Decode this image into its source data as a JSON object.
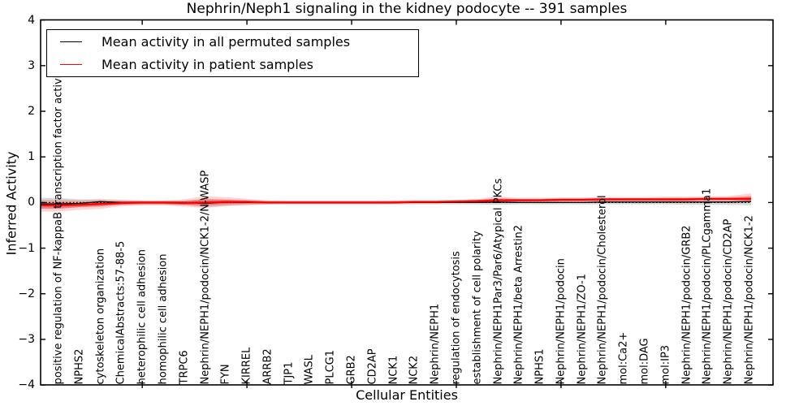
{
  "figure": {
    "title": "Nephrin/Neph1 signaling in the kidney podocyte -- 391 samples",
    "xlabel": "Cellular Entities",
    "ylabel": "Inferred Activity"
  },
  "legend": {
    "items": [
      {
        "label": "Mean activity in all permuted samples",
        "color": "#000000"
      },
      {
        "label": "Mean activity in patient samples",
        "color": "#ff0000"
      }
    ]
  },
  "chart_data": {
    "type": "line",
    "title": "Nephrin/Neph1 signaling in the kidney podocyte -- 391 samples",
    "xlabel": "Cellular Entities",
    "ylabel": "Inferred Activity",
    "ylim": [
      -4,
      4
    ],
    "yticks": [
      -4,
      -3,
      -2,
      -1,
      0,
      1,
      2,
      3,
      4
    ],
    "frame_xticks": [
      5,
      10,
      15,
      20,
      25,
      30
    ],
    "grid": false,
    "legend_position": "upper left",
    "zero_reference_line": {
      "y": 0,
      "style": "dotted",
      "color": "#000000"
    },
    "categories": [
      "positive regulation of NF-kappaB transcription factor activity",
      "NPHS2",
      "cytoskeleton organization",
      "ChemicalAbstracts:57-88-5",
      "heterophilic cell adhesion",
      "homophilic cell adhesion",
      "TRPC6",
      "Nephrin/NEPH1/podocin/NCK1-2/N-WASP",
      "FYN",
      "KIRREL",
      "ARRB2",
      "TJP1",
      "WASL",
      "PLCG1",
      "GRB2",
      "CD2AP",
      "NCK1",
      "NCK2",
      "Nephrin/NEPH1",
      "regulation of endocytosis",
      "establishment of cell polarity",
      "Nephrin/NEPH1Par3/Par6/Atypical PKCs",
      "Nephrin/NEPH1/beta Arrestin2",
      "NPHS1",
      "Nephrin/NEPH1/podocin",
      "Nephrin/NEPH1/ZO-1",
      "Nephrin/NEPH1/podocin/Cholesterol",
      "mol:Ca2+",
      "mol:DAG",
      "mol:IP3",
      "Nephrin/NEPH1/podocin/GRB2",
      "Nephrin/NEPH1/podocin/PLCgamma1",
      "Nephrin/NEPH1/podocin/CD2AP",
      "Nephrin/NEPH1/podocin/NCK1-2"
    ],
    "series": [
      {
        "name": "Mean activity in all permuted samples",
        "color": "#000000",
        "band_color": "#8a8a8a",
        "values": [
          -0.03,
          -0.02,
          0.02,
          0.0,
          0.0,
          0.0,
          0.0,
          -0.02,
          0.01,
          0.0,
          0.0,
          0.0,
          0.0,
          0.0,
          0.0,
          0.0,
          0.0,
          0.0,
          0.0,
          0.0,
          0.0,
          0.01,
          0.0,
          0.0,
          0.0,
          0.0,
          0.01,
          0.01,
          0.01,
          0.01,
          0.01,
          0.01,
          0.01,
          0.02
        ],
        "band_lo": [
          -0.14,
          -0.1,
          -0.08,
          -0.06,
          -0.05,
          -0.05,
          -0.05,
          -0.1,
          -0.07,
          -0.05,
          -0.04,
          -0.04,
          -0.04,
          -0.04,
          -0.04,
          -0.04,
          -0.04,
          -0.04,
          -0.04,
          -0.04,
          -0.04,
          -0.05,
          -0.04,
          -0.04,
          -0.04,
          -0.04,
          -0.04,
          -0.04,
          -0.04,
          -0.04,
          -0.05,
          -0.05,
          -0.05,
          -0.06
        ],
        "band_hi": [
          0.1,
          0.07,
          0.06,
          0.05,
          0.04,
          0.04,
          0.04,
          0.08,
          0.06,
          0.05,
          0.04,
          0.04,
          0.04,
          0.04,
          0.04,
          0.04,
          0.04,
          0.04,
          0.04,
          0.05,
          0.05,
          0.07,
          0.06,
          0.06,
          0.07,
          0.07,
          0.07,
          0.07,
          0.07,
          0.07,
          0.08,
          0.08,
          0.08,
          0.12
        ]
      },
      {
        "name": "Mean activity in patient samples",
        "color": "#ff0000",
        "band_color": "#ff0000",
        "values": [
          -0.06,
          -0.05,
          -0.03,
          -0.01,
          0.0,
          0.0,
          -0.01,
          0.0,
          0.01,
          0.01,
          0.0,
          0.0,
          0.0,
          0.0,
          0.0,
          0.0,
          0.0,
          0.01,
          0.01,
          0.02,
          0.03,
          0.05,
          0.05,
          0.05,
          0.06,
          0.06,
          0.07,
          0.07,
          0.07,
          0.07,
          0.07,
          0.08,
          0.08,
          0.08
        ],
        "band_lo": [
          -0.2,
          -0.16,
          -0.14,
          -0.08,
          -0.06,
          -0.06,
          -0.09,
          -0.12,
          -0.08,
          -0.06,
          -0.04,
          -0.03,
          -0.03,
          -0.03,
          -0.03,
          -0.03,
          -0.03,
          -0.02,
          -0.02,
          -0.01,
          0.0,
          -0.01,
          0.0,
          0.01,
          0.01,
          0.02,
          0.02,
          0.03,
          0.03,
          0.02,
          0.02,
          0.03,
          0.03,
          0.0
        ],
        "band_hi": [
          0.06,
          0.05,
          0.08,
          0.06,
          0.05,
          0.05,
          0.07,
          0.14,
          0.12,
          0.08,
          0.05,
          0.04,
          0.04,
          0.04,
          0.04,
          0.04,
          0.05,
          0.05,
          0.05,
          0.06,
          0.08,
          0.13,
          0.1,
          0.1,
          0.11,
          0.11,
          0.12,
          0.12,
          0.12,
          0.13,
          0.13,
          0.13,
          0.14,
          0.2
        ]
      }
    ]
  }
}
